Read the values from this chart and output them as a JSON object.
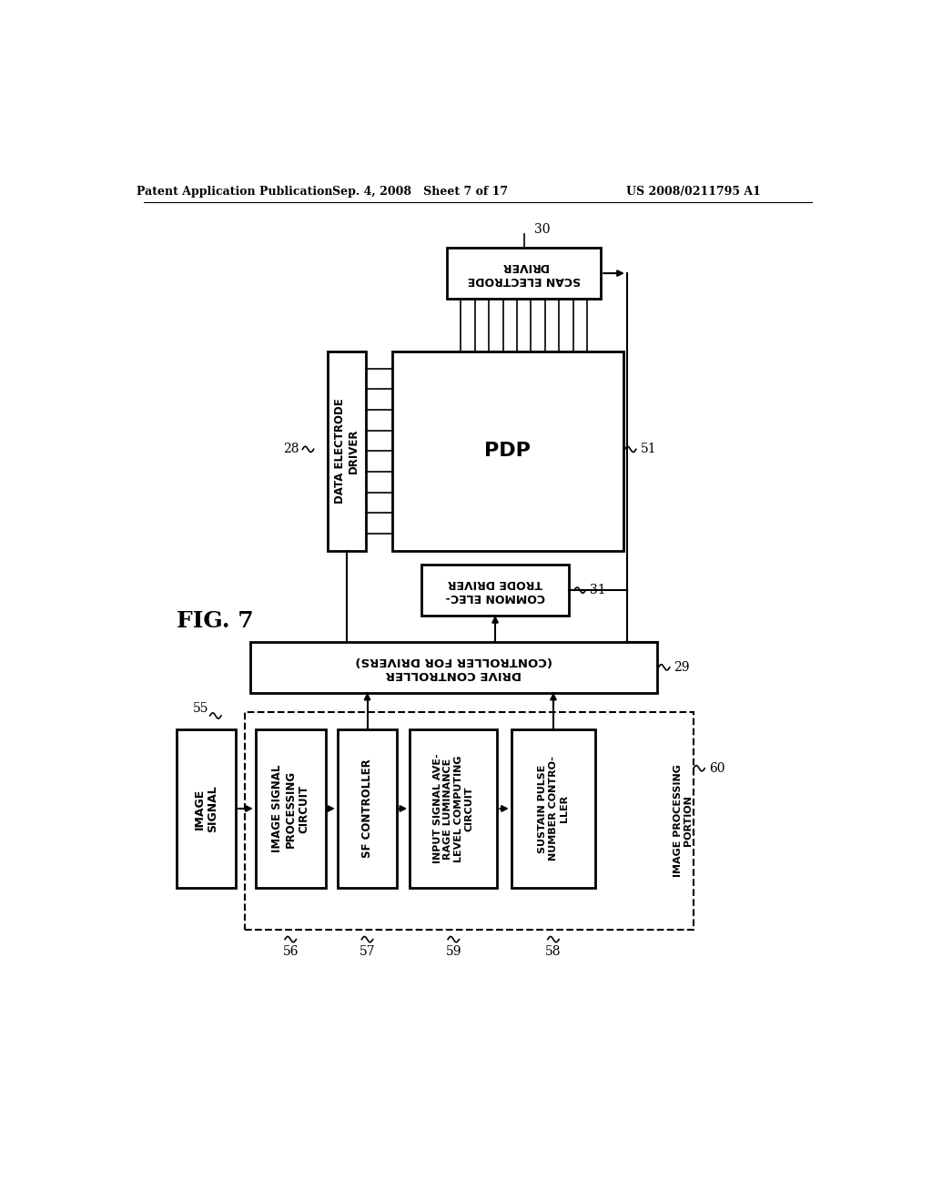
{
  "bg_color": "#ffffff",
  "header_left": "Patent Application Publication",
  "header_mid": "Sep. 4, 2008   Sheet 7 of 17",
  "header_right": "US 2008/0211795 A1"
}
